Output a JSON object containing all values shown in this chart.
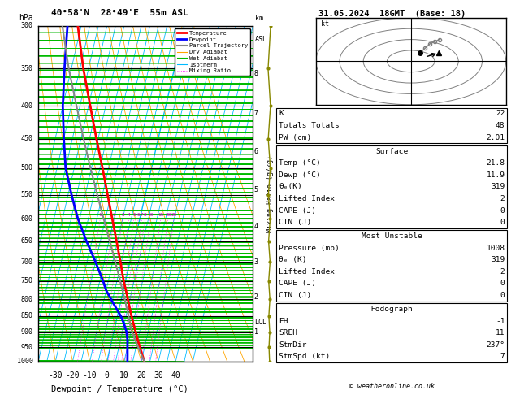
{
  "title_left": "40°58'N  28°49'E  55m ASL",
  "title_right": "31.05.2024  18GMT  (Base: 18)",
  "xlabel": "Dewpoint / Temperature (°C)",
  "pressure_levels": [
    300,
    350,
    400,
    450,
    500,
    550,
    600,
    650,
    700,
    750,
    800,
    850,
    900,
    950,
    1000
  ],
  "temp_ticks": [
    -30,
    -20,
    -10,
    0,
    10,
    20,
    30,
    40
  ],
  "km_heights": [
    1,
    2,
    3,
    4,
    5,
    6,
    7,
    8
  ],
  "lcl_pressure": 870,
  "temperature_profile": {
    "pressure": [
      1000,
      975,
      950,
      925,
      900,
      875,
      850,
      825,
      800,
      775,
      750,
      700,
      650,
      600,
      550,
      500,
      450,
      400,
      350,
      300
    ],
    "temp": [
      21.8,
      19.5,
      17.2,
      15.0,
      12.8,
      10.5,
      8.2,
      6.0,
      3.8,
      1.5,
      -1.0,
      -5.5,
      -10.5,
      -16.0,
      -22.0,
      -28.5,
      -36.0,
      -44.0,
      -53.0,
      -62.0
    ]
  },
  "dewpoint_profile": {
    "pressure": [
      1000,
      975,
      950,
      925,
      900,
      875,
      850,
      825,
      800,
      775,
      750,
      700,
      650,
      600,
      550,
      500,
      450,
      400,
      350,
      300
    ],
    "temp": [
      11.9,
      11.0,
      10.0,
      9.0,
      7.5,
      5.0,
      2.0,
      -2.0,
      -6.0,
      -10.0,
      -13.0,
      -20.0,
      -28.0,
      -36.0,
      -43.0,
      -50.0,
      -55.0,
      -60.0,
      -64.0,
      -68.0
    ]
  },
  "parcel_profile": {
    "pressure": [
      1000,
      975,
      950,
      925,
      900,
      870,
      850,
      825,
      800,
      775,
      750,
      700,
      650,
      600,
      550,
      500,
      450,
      400,
      350,
      300
    ],
    "temp": [
      21.8,
      19.0,
      16.2,
      13.4,
      10.6,
      8.0,
      6.5,
      4.3,
      2.0,
      -0.5,
      -3.0,
      -8.5,
      -14.5,
      -21.0,
      -28.0,
      -35.5,
      -43.5,
      -52.0,
      -61.5,
      -71.0
    ]
  },
  "wind_profile": {
    "pressure": [
      1000,
      950,
      900,
      850,
      800,
      750,
      700,
      650,
      600,
      550,
      500,
      450,
      400,
      350,
      300
    ],
    "u_kt": [
      3,
      4,
      5,
      6,
      7,
      8,
      9,
      9,
      10,
      11,
      12,
      13,
      14,
      15,
      16
    ],
    "v_kt": [
      5,
      7,
      9,
      11,
      13,
      14,
      15,
      16,
      18,
      20,
      22,
      23,
      24,
      25,
      26
    ]
  },
  "hodograph_points": {
    "u": [
      2,
      3,
      4,
      5,
      6
    ],
    "v": [
      4,
      6,
      8,
      9,
      10
    ]
  },
  "stats": {
    "K": 22,
    "Totals_Totals": 48,
    "PW_cm": 2.01,
    "Surface_Temp": 21.8,
    "Surface_Dewp": 11.9,
    "Surface_theta_e": 319,
    "Surface_LI": 2,
    "Surface_CAPE": 0,
    "Surface_CIN": 0,
    "MU_Pressure": 1008,
    "MU_theta_e": 319,
    "MU_LI": 2,
    "MU_CAPE": 0,
    "MU_CIN": 0,
    "EH": -1,
    "SREH": 11,
    "StmDir": 237,
    "StmSpd": 7
  },
  "colors": {
    "temperature": "#ff0000",
    "dewpoint": "#0000ff",
    "parcel": "#888888",
    "dry_adiabat": "#ffa500",
    "wet_adiabat": "#00bb00",
    "isotherm": "#00bbff",
    "mixing_ratio": "#ff00ff",
    "background": "#ffffff",
    "wind": "#888800"
  },
  "SKEW": 45,
  "p_min": 300,
  "p_max": 1000,
  "x_min": -40,
  "x_max": 40
}
